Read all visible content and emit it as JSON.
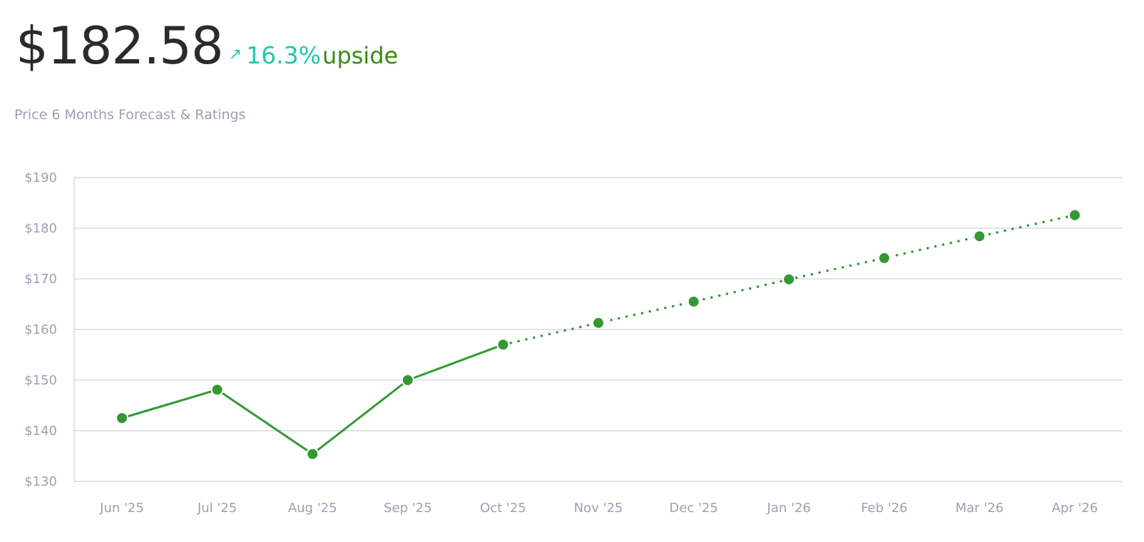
{
  "header": {
    "price": "$182.58",
    "arrow_icon": "↗",
    "change_pct": "16.3%",
    "change_word": "upside",
    "subtitle": "Price 6 Months Forecast & Ratings"
  },
  "colors": {
    "accent_teal": "#1fc8a8",
    "upside_green": "#3a8a13",
    "series_green": "#339933",
    "grid": "#d5d8e0",
    "tick_text": "#9aa2b1"
  },
  "chart_data": {
    "type": "line",
    "categories": [
      "Jun '25",
      "Jul '25",
      "Aug '25",
      "Sep '25",
      "Oct '25",
      "Nov '25",
      "Dec '25",
      "Jan '26",
      "Feb '26",
      "Mar '26",
      "Apr '26"
    ],
    "values": [
      142.5,
      148.1,
      135.4,
      150.0,
      157.0,
      161.3,
      165.5,
      169.9,
      174.1,
      178.4,
      182.58
    ],
    "historical_count": 5,
    "y_ticks": [
      "$190",
      "$180",
      "$170",
      "$160",
      "$150",
      "$140",
      "$130"
    ],
    "ylim": [
      130,
      190
    ],
    "grid": true,
    "forecast_line_style": "dotted"
  }
}
